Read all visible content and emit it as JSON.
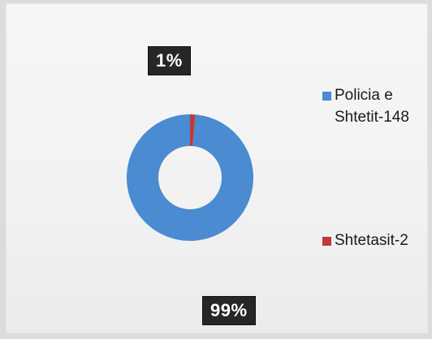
{
  "chart_data": {
    "type": "pie",
    "subtype": "doughnut",
    "categories": [
      "Policia e Shtetit-148",
      "Shtetasit-2"
    ],
    "values": [
      148,
      2
    ],
    "percent_labels": [
      "99%",
      "1%"
    ],
    "colors": [
      "#4a8bd1",
      "#c0393b"
    ],
    "legend_position": "right"
  }
}
